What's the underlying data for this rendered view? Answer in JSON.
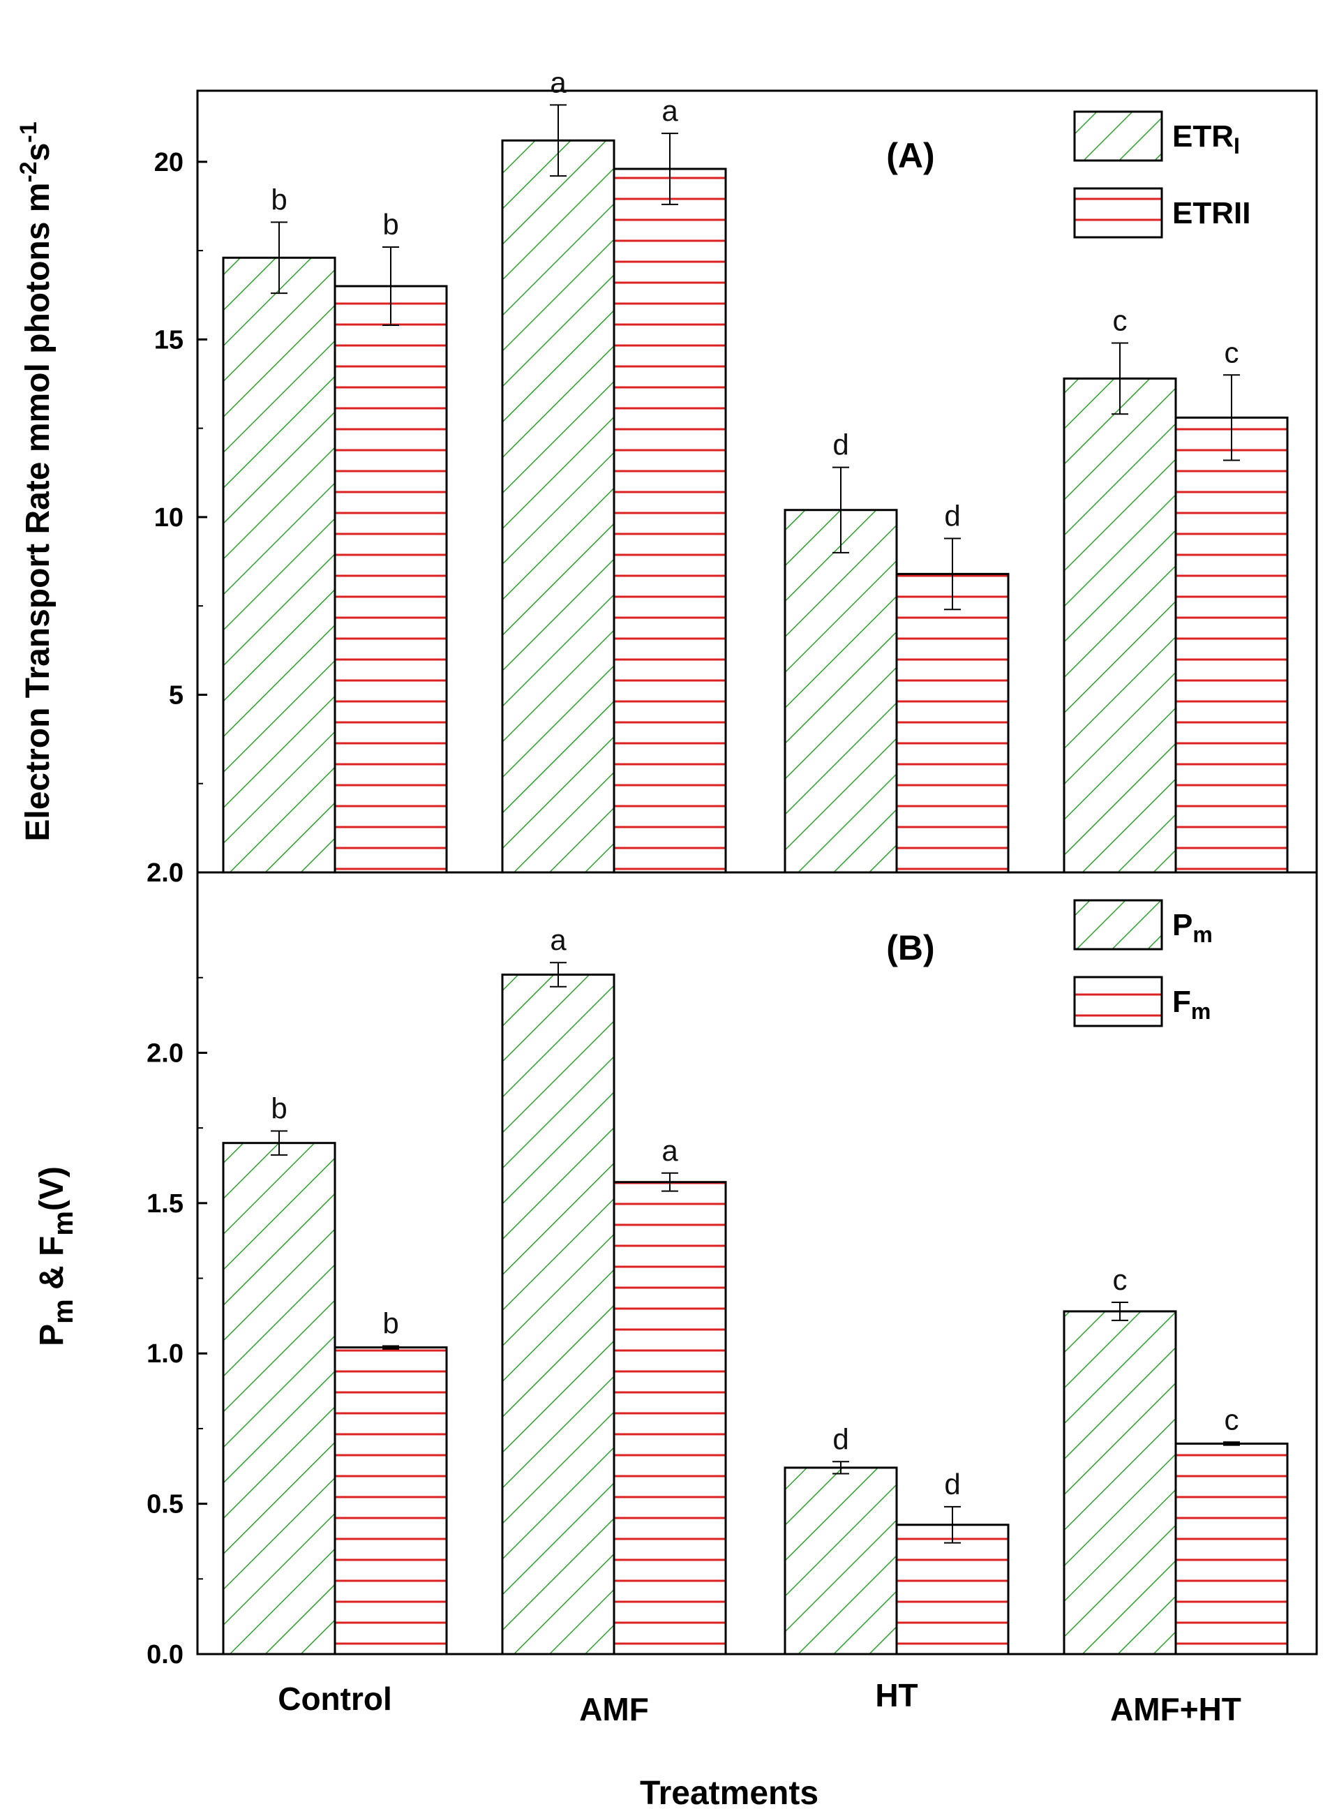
{
  "figure": {
    "xlabel": "Treatments",
    "categories": [
      "Control",
      "AMF",
      "HT",
      "AMF+HT"
    ]
  },
  "chart_data": [
    {
      "type": "bar",
      "panel": "(A)",
      "ylabel": {
        "main": "Electron Transport Rate mmol photons m",
        "sup1": "-2",
        "mid": "s",
        "sup2": "-1"
      },
      "ylim": [
        0,
        22.0
      ],
      "yticks": [
        0,
        5,
        10,
        15,
        20
      ],
      "bottom_tick_label": "2.0",
      "categories": [
        "Control",
        "AMF",
        "HT",
        "AMF+HT"
      ],
      "legend_position": "top-right",
      "series": [
        {
          "name": "ETRI",
          "legend_main": "ETR",
          "legend_sub": "I",
          "values": [
            17.3,
            20.6,
            10.2,
            13.9
          ],
          "errors": [
            1.0,
            1.0,
            1.2,
            1.0
          ],
          "letters": [
            "b",
            "a",
            "d",
            "c"
          ],
          "pattern": "diagonal",
          "color": "#2e9e2e"
        },
        {
          "name": "ETRII",
          "legend_main": "ETRII",
          "legend_sub": "",
          "values": [
            16.5,
            19.8,
            8.4,
            12.8
          ],
          "errors": [
            1.1,
            1.0,
            1.0,
            1.2
          ],
          "letters": [
            "b",
            "a",
            "d",
            "c"
          ],
          "pattern": "horizontal",
          "color": "#dd2222"
        }
      ]
    },
    {
      "type": "bar",
      "panel": "(B)",
      "ylabel": {
        "p": "P",
        "psub": "m",
        "amp": " & F",
        "fsub": "m",
        "unit": "(V)"
      },
      "ylim": [
        0,
        2.6
      ],
      "yticks": [
        0.0,
        0.5,
        1.0,
        1.5,
        2.0
      ],
      "yticklabels": [
        "0.0",
        "0.5",
        "1.0",
        "1.5",
        "2.0"
      ],
      "categories": [
        "Control",
        "AMF",
        "HT",
        "AMF+HT"
      ],
      "legend_position": "top-right",
      "series": [
        {
          "name": "Pm",
          "legend_main": "P",
          "legend_sub": "m",
          "values": [
            1.7,
            2.26,
            0.62,
            1.14
          ],
          "errors": [
            0.04,
            0.04,
            0.02,
            0.03
          ],
          "letters": [
            "b",
            "a",
            "d",
            "c"
          ],
          "pattern": "diagonal",
          "color": "#2e9e2e"
        },
        {
          "name": "Fm",
          "legend_main": "F",
          "legend_sub": "m",
          "values": [
            1.02,
            1.57,
            0.43,
            0.7
          ],
          "errors": [
            0.005,
            0.03,
            0.06,
            0.005
          ],
          "letters": [
            "b",
            "a",
            "d",
            "c"
          ],
          "pattern": "horizontal",
          "color": "#dd2222"
        }
      ]
    }
  ]
}
